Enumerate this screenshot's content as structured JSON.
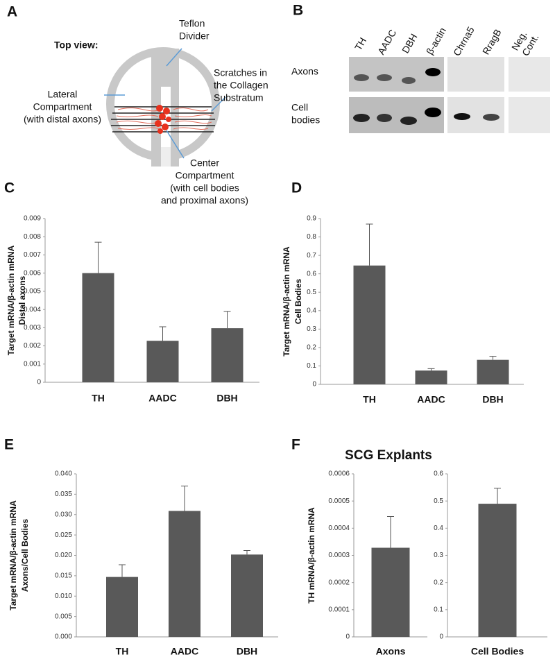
{
  "panel_letters": [
    "A",
    "B",
    "C",
    "D",
    "E",
    "F"
  ],
  "diagram": {
    "heading": "Top view:",
    "divider": [
      "Teflon",
      "Divider"
    ],
    "scratches": [
      "Scratches in",
      "the Collagen",
      "Substratum"
    ],
    "lateral": [
      "Lateral",
      "Compartment",
      "(with distal axons)"
    ],
    "center": [
      "Center",
      "Compartment",
      "(with cell bodies",
      "and proximal axons)"
    ]
  },
  "gel": {
    "lanes": [
      "TH",
      "AADC",
      "DBH",
      "β-actin",
      "Chrna5",
      "RragB",
      "Neg.",
      "Cont."
    ],
    "rows": [
      [
        "Axons"
      ],
      [
        "Cell",
        "bodies"
      ]
    ]
  },
  "chart_data": [
    {
      "type": "bar",
      "categories": [
        "TH",
        "AADC",
        "DBH"
      ],
      "values": [
        0.006,
        0.00228,
        0.00297
      ],
      "errors": [
        0.0017,
        0.00077,
        0.00093
      ],
      "color": "#595959",
      "ylim": [
        0,
        0.009
      ],
      "yticks": [
        0,
        0.001,
        0.002,
        0.003,
        0.004,
        0.005,
        0.006,
        0.007,
        0.008,
        0.009
      ],
      "ylabel": [
        "Target mRNA/β-actin mRNA",
        "Distal axons"
      ]
    },
    {
      "type": "bar",
      "categories": [
        "TH",
        "AADC",
        "DBH"
      ],
      "values": [
        0.645,
        0.075,
        0.133
      ],
      "errors": [
        0.225,
        0.01,
        0.019
      ],
      "color": "#595959",
      "ylim": [
        0,
        0.9
      ],
      "yticks": [
        0,
        0.1,
        0.2,
        0.3,
        0.4,
        0.5,
        0.6,
        0.7,
        0.8,
        0.9
      ],
      "ylabel": [
        "Target  mRNA/β-actin mRNA",
        "Cell Bodies"
      ]
    },
    {
      "type": "bar",
      "categories": [
        "TH",
        "AADC",
        "DBH"
      ],
      "values": [
        0.0147,
        0.0309,
        0.0202
      ],
      "errors": [
        0.003,
        0.0061,
        0.001
      ],
      "color": "#595959",
      "ylim": [
        0,
        0.04
      ],
      "yticks": [
        {
          "value": 0,
          "label": "0.000"
        },
        {
          "value": 0.005,
          "label": "0.005"
        },
        {
          "value": 0.01,
          "label": "0.010"
        },
        {
          "value": 0.015,
          "label": "0.015"
        },
        {
          "value": 0.02,
          "label": "0.020"
        },
        {
          "value": 0.025,
          "label": "0.025"
        },
        {
          "value": 0.03,
          "label": "0.030"
        },
        {
          "value": 0.035,
          "label": "0.035"
        },
        {
          "value": 0.04,
          "label": "0.040"
        }
      ],
      "ylabel": [
        "Target  mRNA/β-actin mRNA",
        "Axons/Cell Bodies"
      ]
    },
    {
      "type": "bar",
      "title": "SCG Explants",
      "categories": [
        "Axons"
      ],
      "values": [
        0.000328
      ],
      "errors": [
        0.000115
      ],
      "color": "#595959",
      "ylim": [
        0,
        0.0006
      ],
      "yticks": [
        0,
        0.0001,
        0.0002,
        0.0003,
        0.0004,
        0.0005,
        0.0006
      ],
      "ylabel": [
        "TH mRNA/β-actin mRNA"
      ]
    },
    {
      "type": "bar",
      "categories": [
        "Cell Bodies"
      ],
      "values": [
        0.49
      ],
      "errors": [
        0.057
      ],
      "color": "#595959",
      "ylim": [
        0,
        0.6
      ],
      "yticks": [
        0,
        0.1,
        0.2,
        0.3,
        0.4,
        0.5,
        0.6
      ]
    }
  ]
}
